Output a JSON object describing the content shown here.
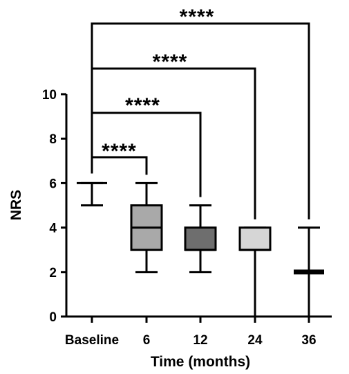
{
  "chart_data": {
    "type": "boxplot",
    "xlabel": "Time (months)",
    "ylabel": "NRS",
    "ylim": [
      0,
      10
    ],
    "yticks": [
      "0",
      "2",
      "4",
      "6",
      "8",
      "10"
    ],
    "categories": [
      "Baseline",
      "6",
      "12",
      "24",
      "36"
    ],
    "boxes": [
      {
        "category": "Baseline",
        "min": 5,
        "q1": 6,
        "median": 6,
        "q3": 6,
        "max": 6,
        "fill": "#ffffff"
      },
      {
        "category": "6",
        "min": 2,
        "q1": 3,
        "median": 4,
        "q3": 5,
        "max": 6,
        "fill": "#a9a9a9"
      },
      {
        "category": "12",
        "min": 2,
        "q1": 3,
        "median": 3,
        "q3": 4,
        "max": 5,
        "fill": "#6e6e6e"
      },
      {
        "category": "24",
        "min": 0,
        "q1": 3,
        "median": 3,
        "q3": 4,
        "max": 4,
        "fill": "#d6d6d6"
      },
      {
        "category": "36",
        "min": 0,
        "q1": 2,
        "median": 2,
        "q3": 2,
        "max": 4,
        "fill": "#ffffff"
      }
    ],
    "comparisons": [
      {
        "from": "Baseline",
        "to": "6",
        "label": "****"
      },
      {
        "from": "Baseline",
        "to": "12",
        "label": "****"
      },
      {
        "from": "Baseline",
        "to": "24",
        "label": "****"
      },
      {
        "from": "Baseline",
        "to": "36",
        "label": "****"
      }
    ]
  }
}
